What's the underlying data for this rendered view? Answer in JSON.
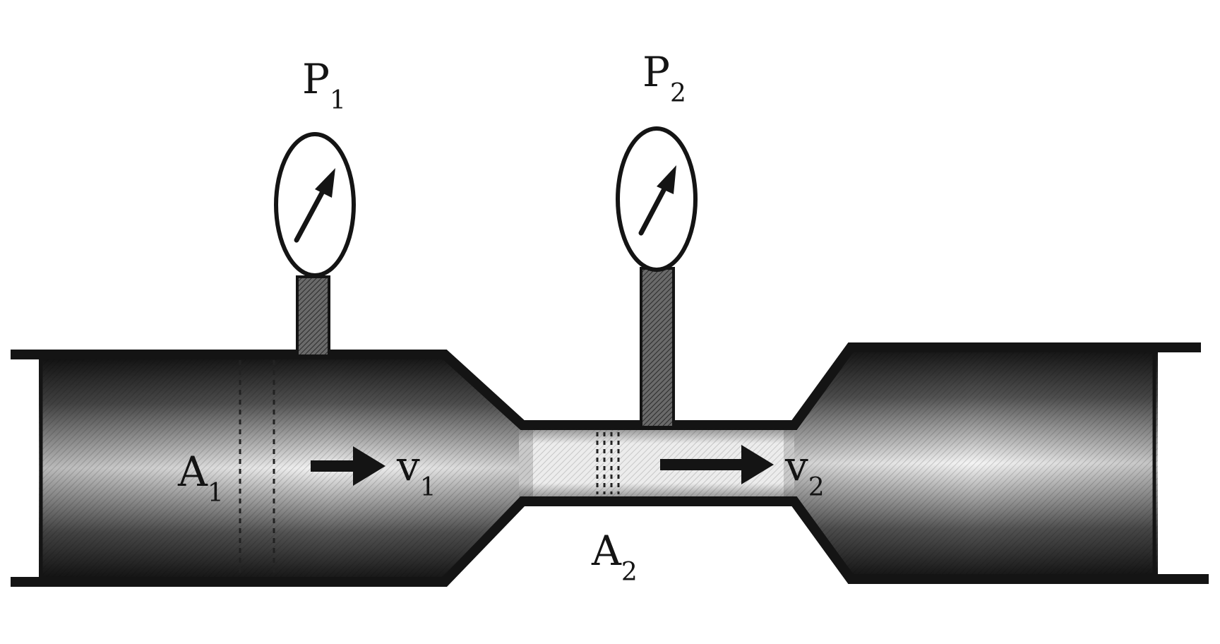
{
  "diagram": {
    "gauges": [
      {
        "letter": "P",
        "sub": "1"
      },
      {
        "letter": "P",
        "sub": "2"
      }
    ],
    "areas": [
      {
        "letter": "A",
        "sub": "1"
      },
      {
        "letter": "A",
        "sub": "2"
      }
    ],
    "velocities": [
      {
        "letter": "v",
        "sub": "1"
      },
      {
        "letter": "v",
        "sub": "2"
      }
    ]
  },
  "colors": {
    "ink": "#141414",
    "pipe_dark": "#1a1a1a",
    "pipe_light": "#f2f2f2",
    "background": "#ffffff"
  }
}
